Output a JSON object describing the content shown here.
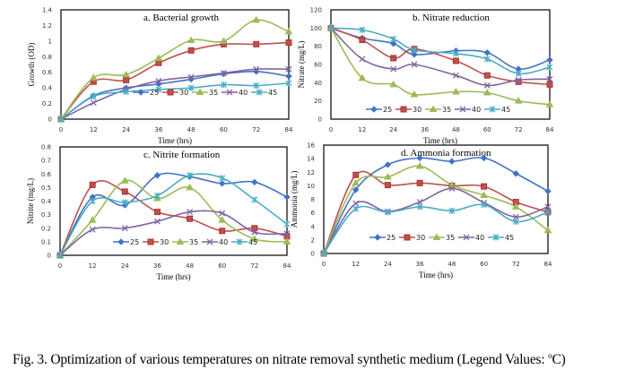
{
  "caption": {
    "prefix": "Fig. 3. Optimization of various temperatures on nitrate removal synthetic medium (Legend Values: ",
    "degree": "o",
    "suffix": "C)"
  },
  "series_style": [
    {
      "name": "25",
      "color": "#4472C4",
      "marker": "diamond"
    },
    {
      "name": "30",
      "color": "#C0504D",
      "marker": "square"
    },
    {
      "name": "35",
      "color": "#9BBB59",
      "marker": "triangle"
    },
    {
      "name": "40",
      "color": "#8064A2",
      "marker": "x"
    },
    {
      "name": "45",
      "color": "#4BACC6",
      "marker": "star"
    }
  ],
  "chart_data": [
    {
      "id": "a",
      "type": "line",
      "title": "a. Bacterial growth",
      "xlabel": "Time  (hrs)",
      "ylabel": "Growth (OD)",
      "xlim": [
        0,
        84
      ],
      "ylim": [
        0,
        1.4
      ],
      "xticks": [
        "0",
        "12",
        "24",
        "36",
        "48",
        "60",
        "72",
        "84"
      ],
      "yticks": [
        "0",
        "0.2",
        "0.4",
        "0.6",
        "0.8",
        "1",
        "1.2",
        "1.4"
      ],
      "legend": "inside-bottom",
      "series": [
        {
          "name": "25",
          "x": [
            0,
            12,
            24,
            36,
            48,
            60,
            72,
            84
          ],
          "values": [
            0,
            0.3,
            0.4,
            0.45,
            0.51,
            0.58,
            0.61,
            0.55
          ]
        },
        {
          "name": "30",
          "x": [
            0,
            12,
            24,
            36,
            48,
            60,
            72,
            84
          ],
          "values": [
            0,
            0.48,
            0.5,
            0.72,
            0.88,
            0.96,
            0.96,
            0.98
          ]
        },
        {
          "name": "35",
          "x": [
            0,
            12,
            24,
            36,
            48,
            60,
            72,
            84
          ],
          "values": [
            0,
            0.53,
            0.57,
            0.78,
            1.01,
            1.0,
            1.27,
            1.12
          ]
        },
        {
          "name": "40",
          "x": [
            0,
            12,
            24,
            36,
            48,
            60,
            72,
            84
          ],
          "values": [
            0,
            0.21,
            0.38,
            0.49,
            0.54,
            0.59,
            0.64,
            0.64
          ]
        },
        {
          "name": "45",
          "x": [
            0,
            12,
            24,
            36,
            48,
            60,
            72,
            84
          ],
          "values": [
            0,
            0.29,
            0.35,
            0.38,
            0.4,
            0.44,
            0.43,
            0.46
          ]
        }
      ]
    },
    {
      "id": "b",
      "type": "line",
      "title": "b. Nitrate reduction",
      "xlabel": "Time  (hrs)",
      "ylabel": "Nitrate (mg/L)",
      "xlim": [
        0,
        84
      ],
      "ylim": [
        0,
        120
      ],
      "xticks": [
        "0",
        "12",
        "24",
        "36",
        "48",
        "60",
        "72",
        "84"
      ],
      "yticks": [
        "0",
        "20",
        "40",
        "60",
        "80",
        "100",
        "120"
      ],
      "legend": "inside-bottom",
      "series": [
        {
          "name": "25",
          "x": [
            0,
            12,
            24,
            32,
            48,
            60,
            72,
            84
          ],
          "values": [
            100,
            89,
            83,
            71,
            75,
            73,
            55,
            65
          ]
        },
        {
          "name": "30",
          "x": [
            0,
            12,
            24,
            32,
            48,
            60,
            72,
            84
          ],
          "values": [
            100,
            87,
            67,
            77,
            64,
            48,
            41,
            38
          ]
        },
        {
          "name": "35",
          "x": [
            0,
            12,
            24,
            32,
            48,
            60,
            72,
            84
          ],
          "values": [
            100,
            45,
            38,
            27,
            30,
            29,
            20,
            16
          ]
        },
        {
          "name": "40",
          "x": [
            0,
            12,
            24,
            32,
            48,
            60,
            72,
            84
          ],
          "values": [
            100,
            66,
            55,
            60,
            48,
            37,
            43,
            44
          ]
        },
        {
          "name": "45",
          "x": [
            0,
            12,
            24,
            32,
            48,
            60,
            72,
            84
          ],
          "values": [
            100,
            98,
            88,
            76,
            72,
            66,
            50,
            57
          ]
        }
      ]
    },
    {
      "id": "c",
      "type": "line",
      "title": "c. Nitrite formation",
      "xlabel": "Time  (hrs)",
      "ylabel": "Nitrite (mg/L)",
      "xlim": [
        0,
        84
      ],
      "ylim": [
        0,
        0.8
      ],
      "xticks": [
        "0",
        "12",
        "24",
        "36",
        "48",
        "60",
        "72",
        "84"
      ],
      "yticks": [
        "0",
        "0.1",
        "0.2",
        "0.3",
        "0.4",
        "0.5",
        "0.6",
        "0.7",
        "0.8"
      ],
      "legend": "inside-bottom",
      "series": [
        {
          "name": "25",
          "x": [
            0,
            12,
            24,
            36,
            48,
            60,
            72,
            84
          ],
          "values": [
            0,
            0.43,
            0.37,
            0.59,
            0.58,
            0.53,
            0.54,
            0.43
          ]
        },
        {
          "name": "30",
          "x": [
            0,
            12,
            24,
            36,
            48,
            60,
            72,
            84
          ],
          "values": [
            0,
            0.52,
            0.47,
            0.32,
            0.27,
            0.18,
            0.2,
            0.14
          ]
        },
        {
          "name": "35",
          "x": [
            0,
            12,
            24,
            36,
            48,
            60,
            72,
            84
          ],
          "values": [
            0,
            0.26,
            0.55,
            0.42,
            0.5,
            0.26,
            0.12,
            0.1
          ]
        },
        {
          "name": "40",
          "x": [
            0,
            12,
            24,
            36,
            48,
            60,
            72,
            84
          ],
          "values": [
            0,
            0.19,
            0.2,
            0.25,
            0.32,
            0.31,
            0.17,
            0.16
          ]
        },
        {
          "name": "45",
          "x": [
            0,
            12,
            24,
            36,
            48,
            60,
            72,
            84
          ],
          "values": [
            0,
            0.4,
            0.39,
            0.44,
            0.59,
            0.57,
            0.41,
            0.23
          ]
        }
      ]
    },
    {
      "id": "d",
      "type": "line",
      "title": "d. Ammonia formation",
      "xlabel": "Time  (hrs)",
      "ylabel": "Ammonia (mg/L)",
      "xlim": [
        0,
        84
      ],
      "ylim": [
        0,
        16
      ],
      "xticks": [
        "0",
        "12",
        "24",
        "36",
        "48",
        "60",
        "72",
        "84"
      ],
      "yticks": [
        "0",
        "2",
        "4",
        "6",
        "8",
        "10",
        "12",
        "14",
        "16"
      ],
      "legend": "inside-bottom",
      "series": [
        {
          "name": "25",
          "x": [
            0,
            12,
            24,
            36,
            48,
            60,
            72,
            84
          ],
          "values": [
            0,
            9.4,
            13.1,
            14.1,
            13.6,
            14.1,
            11.8,
            9.2
          ]
        },
        {
          "name": "30",
          "x": [
            0,
            12,
            24,
            36,
            48,
            60,
            72,
            84
          ],
          "values": [
            0,
            11.6,
            10.1,
            10.4,
            10.0,
            9.9,
            7.6,
            6.1
          ]
        },
        {
          "name": "35",
          "x": [
            0,
            12,
            24,
            36,
            48,
            60,
            72,
            84
          ],
          "values": [
            0,
            10.4,
            11.3,
            12.9,
            10.1,
            8.6,
            6.9,
            3.4
          ]
        },
        {
          "name": "40",
          "x": [
            0,
            12,
            24,
            36,
            48,
            60,
            72,
            84
          ],
          "values": [
            0,
            7.4,
            6.2,
            7.6,
            9.6,
            7.5,
            5.4,
            6.9
          ]
        },
        {
          "name": "45",
          "x": [
            0,
            12,
            24,
            36,
            48,
            60,
            72,
            84
          ],
          "values": [
            0,
            6.6,
            6.1,
            6.9,
            6.3,
            7.2,
            4.7,
            6.1
          ]
        }
      ]
    }
  ]
}
